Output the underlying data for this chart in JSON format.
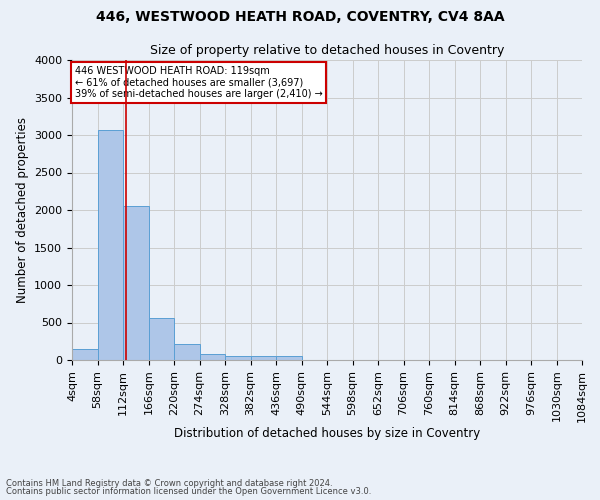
{
  "title1": "446, WESTWOOD HEATH ROAD, COVENTRY, CV4 8AA",
  "title2": "Size of property relative to detached houses in Coventry",
  "xlabel": "Distribution of detached houses by size in Coventry",
  "ylabel": "Number of detached properties",
  "footer1": "Contains HM Land Registry data © Crown copyright and database right 2024.",
  "footer2": "Contains public sector information licensed under the Open Government Licence v3.0.",
  "annotation_line1": "446 WESTWOOD HEATH ROAD: 119sqm",
  "annotation_line2": "← 61% of detached houses are smaller (3,697)",
  "annotation_line3": "39% of semi-detached houses are larger (2,410) →",
  "property_sqm": 119,
  "bin_edges": [
    4,
    58,
    112,
    166,
    220,
    274,
    328,
    382,
    436,
    490,
    544,
    598,
    652,
    706,
    760,
    814,
    868,
    922,
    976,
    1030,
    1084
  ],
  "bar_heights": [
    150,
    3070,
    2060,
    560,
    210,
    80,
    50,
    50,
    55,
    0,
    0,
    0,
    0,
    0,
    0,
    0,
    0,
    0,
    0,
    0
  ],
  "bar_color": "#aec6e8",
  "bar_edge_color": "#5a9fd4",
  "vline_color": "#cc0000",
  "vline_x": 119,
  "ylim": [
    0,
    4000
  ],
  "yticks": [
    0,
    500,
    1000,
    1500,
    2000,
    2500,
    3000,
    3500,
    4000
  ],
  "annotation_box_edge_color": "#cc0000",
  "annotation_box_face_color": "#ffffff",
  "grid_color": "#cccccc",
  "bg_color": "#eaf0f8",
  "title1_fontsize": 10,
  "title2_fontsize": 9,
  "ylabel_fontsize": 8.5,
  "xlabel_fontsize": 8.5,
  "tick_fontsize": 8,
  "annotation_fontsize": 7,
  "footer_fontsize": 6
}
